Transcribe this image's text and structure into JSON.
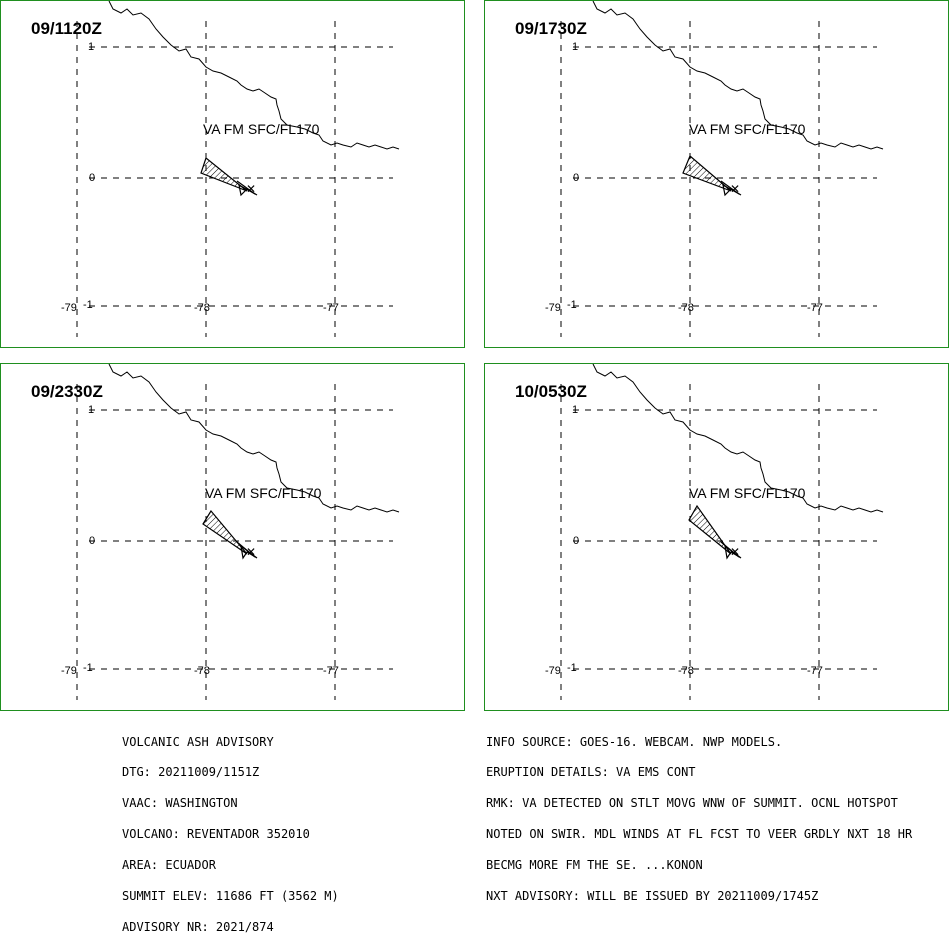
{
  "panels": [
    {
      "time": "09/1120Z",
      "va_label": "VA FM SFC/FL170"
    },
    {
      "time": "09/1730Z",
      "va_label": "VA FM SFC/FL170"
    },
    {
      "time": "09/2330Z",
      "va_label": "VA FM SFC/FL170"
    },
    {
      "time": "10/0530Z",
      "va_label": "VA FM SFC/FL170"
    }
  ],
  "axis_labels": {
    "lat_1": "1",
    "lat_0": "0",
    "lat_m1": "-1",
    "lon_m79": "-79",
    "lon_m78": "-78",
    "lon_m77": "-77"
  },
  "advisory_left": [
    "VOLCANIC ASH ADVISORY",
    "DTG: 20211009/1151Z",
    "VAAC: WASHINGTON",
    "VOLCANO: REVENTADOR 352010",
    "AREA: ECUADOR",
    "SUMMIT ELEV: 11686 FT (3562 M)",
    "ADVISORY NR: 2021/874"
  ],
  "advisory_right": [
    "INFO SOURCE: GOES-16. WEBCAM. NWP MODELS.",
    "ERUPTION DETAILS: VA EMS CONT",
    "RMK: VA DETECTED ON STLT MOVG WNW OF SUMMIT. OCNL HOTSPOT",
    "NOTED ON SWIR. MDL WINDS AT FL FCST TO VEER GRDLY NXT 18 HR",
    "BECMG MORE FM THE SE. ...KONON",
    "NXT ADVISORY: WILL BE ISSUED BY 20211009/1745Z"
  ],
  "colors": {
    "panel_border": "#1f8f1f",
    "grid": "#000000"
  }
}
